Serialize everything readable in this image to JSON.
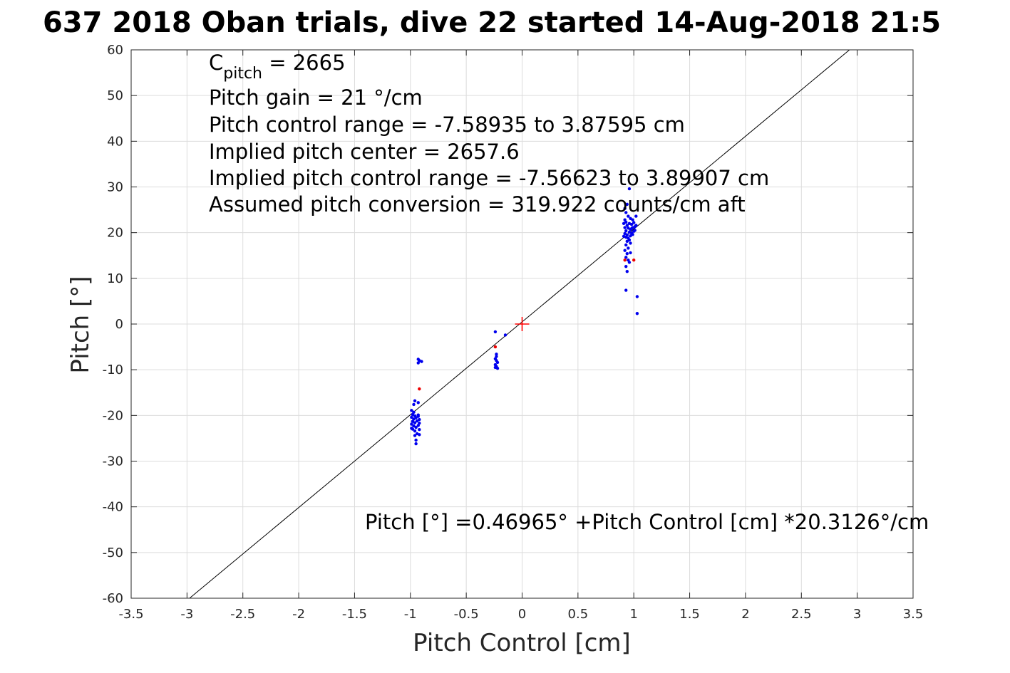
{
  "chart_data": {
    "type": "scatter",
    "title": "637 2018 Oban trials, dive 22 started 14-Aug-2018 21:5",
    "xlabel": "Pitch Control [cm]",
    "ylabel": "Pitch [°]",
    "xlim": [
      -3.5,
      3.5
    ],
    "ylim": [
      -60,
      60
    ],
    "xticks": [
      -3.5,
      -3,
      -2.5,
      -2,
      -1.5,
      -1,
      -0.5,
      0,
      0.5,
      1,
      1.5,
      2,
      2.5,
      3,
      3.5
    ],
    "yticks": [
      -60,
      -50,
      -40,
      -30,
      -20,
      -10,
      0,
      10,
      20,
      30,
      40,
      50,
      60
    ],
    "grid": true,
    "annotations": {
      "cpitch_main": "C",
      "cpitch_sub": "pitch",
      "cpitch_value": " = 2665",
      "line2": "Pitch gain = 21 °/cm",
      "line3": "Pitch control range = -7.58935 to 3.87595 cm",
      "line4": "Implied pitch center = 2657.6",
      "line5": "Implied pitch control range = -7.56623 to 3.89907 cm",
      "line6": "Assumed pitch conversion = 319.922 counts/cm aft",
      "fit": "Pitch [°] =0.46965° +Pitch Control [cm] *20.3126°/cm"
    },
    "fit_line": {
      "intercept": 0.46965,
      "slope": 20.3126,
      "color": "#000000"
    },
    "center_marker": {
      "x": 0,
      "y": 0,
      "color": "#ff0000"
    },
    "series": [
      {
        "color": "#0000ee",
        "points": [
          [
            -0.92,
            -8.0
          ],
          [
            -0.93,
            -8.5
          ],
          [
            -0.9,
            -8.2
          ],
          [
            -0.93,
            -7.7
          ],
          [
            -0.96,
            -16.8
          ],
          [
            -0.93,
            -17.2
          ],
          [
            -0.97,
            -17.6
          ],
          [
            -0.99,
            -18.9
          ],
          [
            -0.97,
            -19.3
          ],
          [
            -0.98,
            -19.8
          ],
          [
            -0.96,
            -20.1
          ],
          [
            -0.99,
            -20.4
          ],
          [
            -0.97,
            -20.8
          ],
          [
            -0.95,
            -20.5
          ],
          [
            -0.93,
            -20.2
          ],
          [
            -0.92,
            -20.9
          ],
          [
            -0.98,
            -21.3
          ],
          [
            -0.96,
            -21.6
          ],
          [
            -0.99,
            -21.9
          ],
          [
            -0.94,
            -21.2
          ],
          [
            -0.92,
            -21.7
          ],
          [
            -0.97,
            -22.3
          ],
          [
            -0.95,
            -22.6
          ],
          [
            -0.93,
            -22.2
          ],
          [
            -0.98,
            -23.0
          ],
          [
            -0.96,
            -23.4
          ],
          [
            -0.92,
            -23.1
          ],
          [
            -0.94,
            -24.0
          ],
          [
            -0.96,
            -24.4
          ],
          [
            -0.92,
            -24.2
          ],
          [
            -0.95,
            -25.4
          ],
          [
            -0.95,
            -26.2
          ],
          [
            -0.99,
            -22.8
          ],
          [
            -0.93,
            -19.9
          ],
          [
            -0.24,
            -1.7
          ],
          [
            -0.15,
            -2.4
          ],
          [
            -0.23,
            -6.6
          ],
          [
            -0.23,
            -7.1
          ],
          [
            -0.24,
            -7.6
          ],
          [
            -0.23,
            -8.0
          ],
          [
            -0.22,
            -8.4
          ],
          [
            -0.24,
            -8.9
          ],
          [
            -0.23,
            -9.3
          ],
          [
            -0.22,
            -9.7
          ],
          [
            -0.24,
            -9.5
          ],
          [
            0.96,
            29.6
          ],
          [
            0.94,
            26.2
          ],
          [
            0.92,
            25.3
          ],
          [
            0.93,
            24.4
          ],
          [
            0.95,
            23.6
          ],
          [
            0.97,
            23.1
          ],
          [
            1.02,
            23.6
          ],
          [
            0.92,
            22.8
          ],
          [
            0.99,
            22.8
          ],
          [
            0.93,
            22.3
          ],
          [
            0.96,
            22.0
          ],
          [
            0.98,
            21.8
          ],
          [
            1.0,
            22.2
          ],
          [
            1.02,
            21.6
          ],
          [
            0.94,
            21.6
          ],
          [
            0.92,
            21.1
          ],
          [
            0.95,
            21.0
          ],
          [
            0.97,
            20.7
          ],
          [
            0.99,
            21.1
          ],
          [
            1.01,
            20.5
          ],
          [
            0.93,
            20.4
          ],
          [
            0.96,
            20.1
          ],
          [
            0.98,
            19.9
          ],
          [
            1.0,
            20.3
          ],
          [
            0.92,
            19.8
          ],
          [
            0.94,
            19.5
          ],
          [
            0.97,
            19.3
          ],
          [
            0.99,
            19.6
          ],
          [
            0.93,
            19.0
          ],
          [
            0.95,
            18.8
          ],
          [
            0.96,
            18.4
          ],
          [
            0.94,
            18.1
          ],
          [
            0.97,
            17.7
          ],
          [
            0.93,
            17.3
          ],
          [
            0.95,
            16.6
          ],
          [
            0.92,
            16.1
          ],
          [
            0.94,
            15.4
          ],
          [
            0.97,
            15.6
          ],
          [
            0.93,
            14.6
          ],
          [
            0.95,
            14.0
          ],
          [
            0.96,
            13.5
          ],
          [
            0.93,
            12.6
          ],
          [
            0.94,
            11.5
          ],
          [
            0.93,
            7.4
          ],
          [
            1.03,
            6.0
          ],
          [
            1.03,
            2.3
          ],
          [
            0.91,
            22.0
          ],
          [
            0.91,
            19.2
          ],
          [
            1.01,
            21.3
          ],
          [
            0.98,
            20.9
          ]
        ]
      },
      {
        "color": "#ee0000",
        "points": [
          [
            -0.92,
            -14.2
          ],
          [
            -0.24,
            -5.0
          ],
          [
            0.92,
            14.0
          ],
          [
            1.0,
            14.0
          ]
        ]
      }
    ]
  }
}
